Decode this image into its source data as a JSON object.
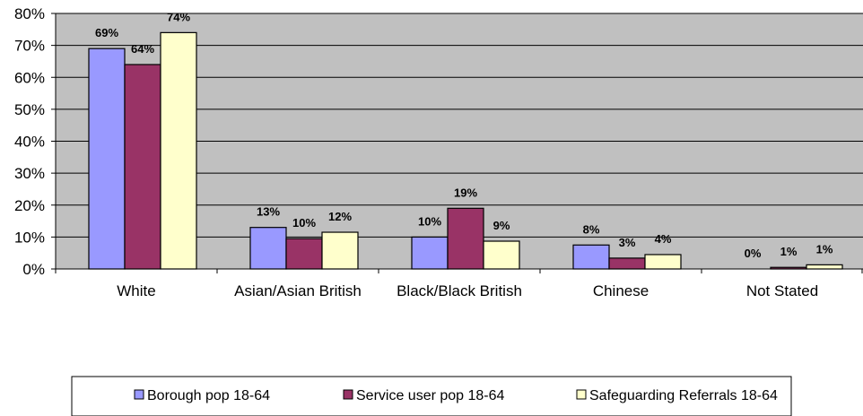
{
  "chart_data": {
    "type": "bar",
    "title": "",
    "xlabel": "",
    "ylabel": "",
    "ylim": [
      0,
      80
    ],
    "y_ticks": [
      "0%",
      "10%",
      "20%",
      "30%",
      "40%",
      "50%",
      "60%",
      "70%",
      "80%"
    ],
    "y_tick_values": [
      0,
      10,
      20,
      30,
      40,
      50,
      60,
      70,
      80
    ],
    "grid": true,
    "plot_background": "#c0c0c0",
    "legend_position": "bottom",
    "categories": [
      "White",
      "Asian/Asian British",
      "Black/Black British",
      "Chinese",
      "Not Stated"
    ],
    "series": [
      {
        "name": "Borough pop 18-64",
        "color": "#9999ff",
        "values": [
          69,
          13,
          10,
          7.5,
          0
        ],
        "labels": [
          "69%",
          "13%",
          "10%",
          "8%",
          "0%"
        ]
      },
      {
        "name": "Service user pop 18-64",
        "color": "#993366",
        "values": [
          64,
          9.5,
          19,
          3.4,
          0.5
        ],
        "labels": [
          "64%",
          "10%",
          "19%",
          "3%",
          "1%"
        ]
      },
      {
        "name": "Safeguarding Referrals 18-64",
        "color": "#ffffcc",
        "values": [
          74,
          11.5,
          8.7,
          4.5,
          1.3
        ],
        "labels": [
          "74%",
          "12%",
          "9%",
          "4%",
          "1%"
        ]
      }
    ]
  }
}
